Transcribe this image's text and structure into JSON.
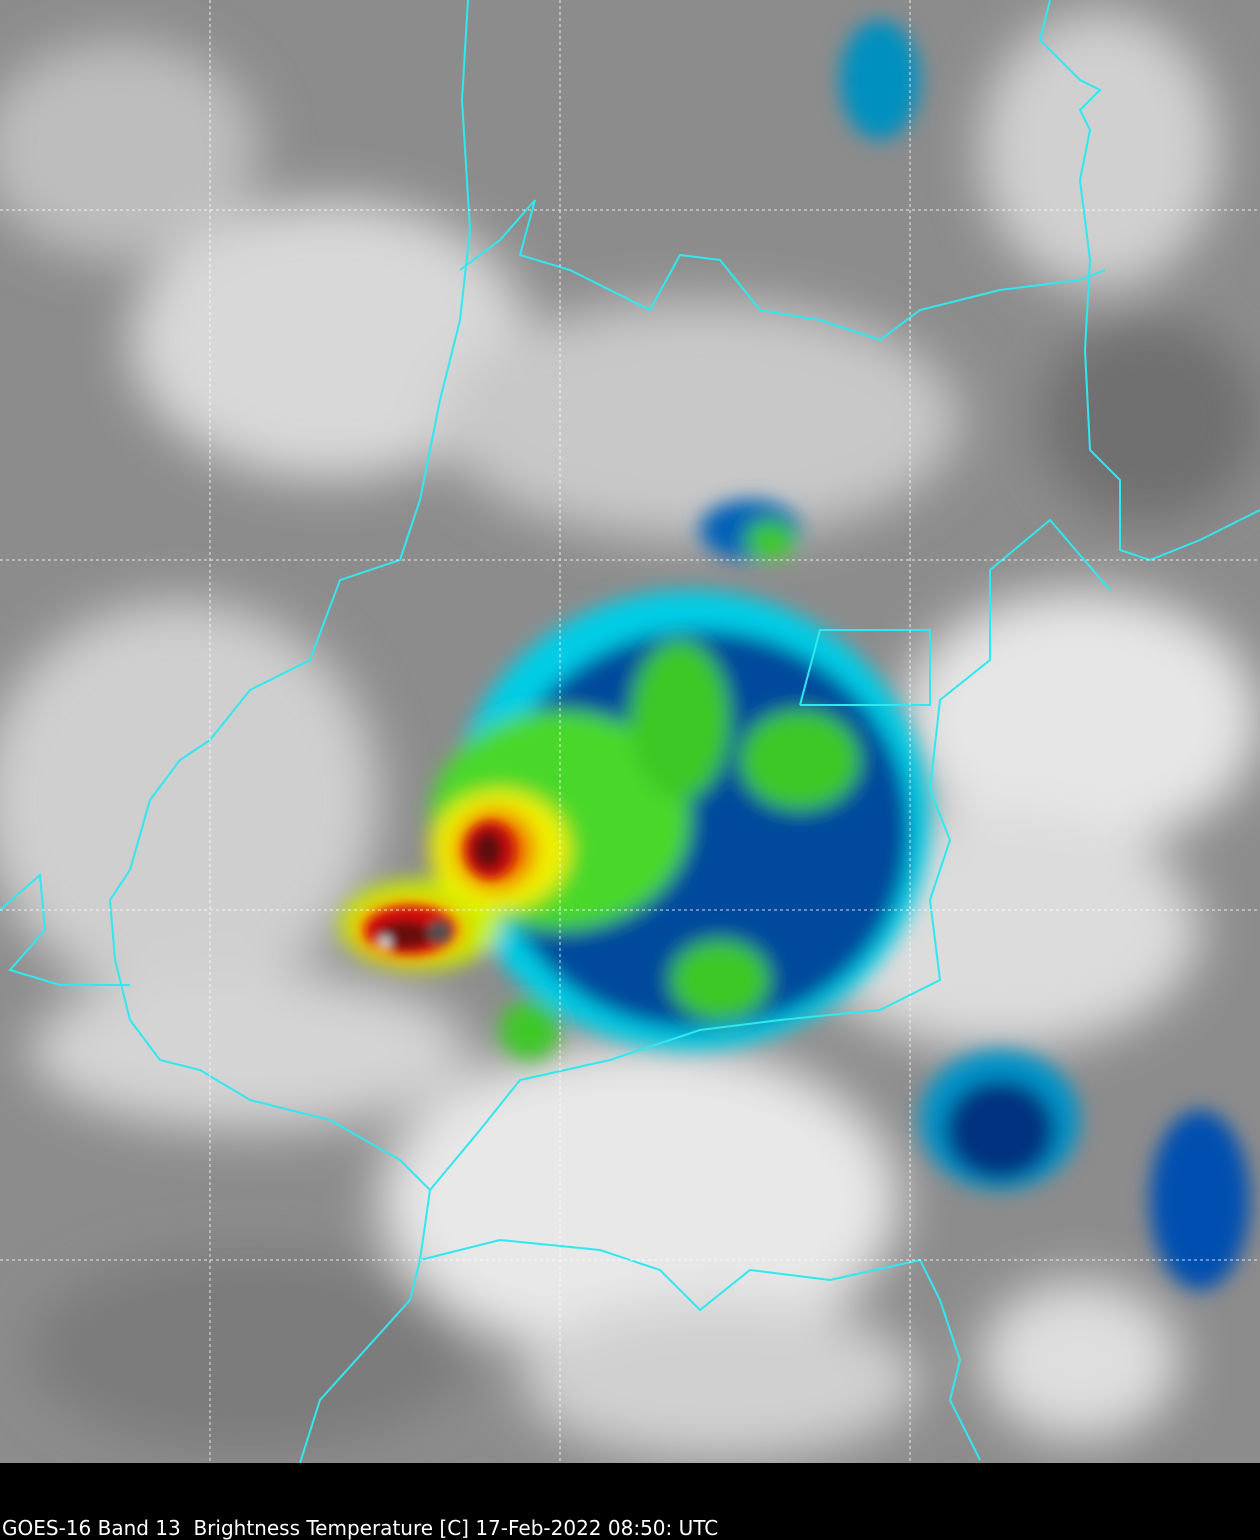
{
  "caption": "GOES-16 Band 13  Brightness Temperature [C] 17-Feb-2022 08:50: UTC"
}
